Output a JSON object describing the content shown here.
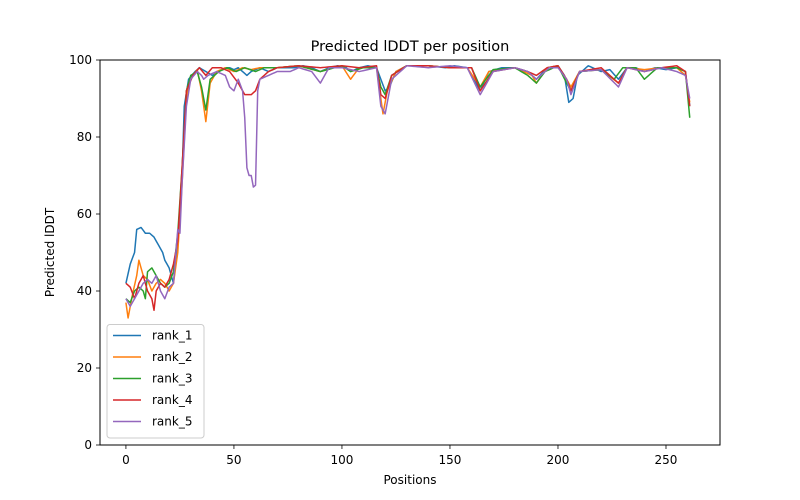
{
  "chart_data": {
    "type": "line",
    "title": "Predicted lDDT per position",
    "xlabel": "Positions",
    "ylabel": "Predicted lDDT",
    "xlim": [
      -12,
      275
    ],
    "ylim": [
      0,
      100
    ],
    "xticks": [
      0,
      50,
      100,
      150,
      200,
      250
    ],
    "yticks": [
      0,
      20,
      40,
      60,
      80,
      100
    ],
    "grid": false,
    "legend_position": "lower-left",
    "n_positions": 262,
    "series": [
      {
        "name": "rank_1",
        "color": "#1f77b4",
        "points": [
          [
            0,
            42
          ],
          [
            2,
            47
          ],
          [
            4,
            50
          ],
          [
            5,
            56
          ],
          [
            7,
            56.5
          ],
          [
            9,
            55
          ],
          [
            11,
            55
          ],
          [
            13,
            54
          ],
          [
            15,
            52
          ],
          [
            17,
            50
          ],
          [
            18,
            48
          ],
          [
            20,
            46
          ],
          [
            21,
            44
          ],
          [
            22,
            42
          ],
          [
            24,
            52
          ],
          [
            26,
            70
          ],
          [
            27,
            88
          ],
          [
            29,
            95
          ],
          [
            32,
            97
          ],
          [
            34,
            98
          ],
          [
            37,
            97
          ],
          [
            40,
            96
          ],
          [
            43,
            97
          ],
          [
            46,
            98
          ],
          [
            48,
            98
          ],
          [
            50,
            97.5
          ],
          [
            52,
            98
          ],
          [
            54,
            97
          ],
          [
            56,
            96
          ],
          [
            58,
            97
          ],
          [
            60,
            97.5
          ],
          [
            62,
            98
          ],
          [
            66,
            97
          ],
          [
            70,
            98
          ],
          [
            74,
            98
          ],
          [
            78,
            98
          ],
          [
            82,
            98.5
          ],
          [
            86,
            98
          ],
          [
            90,
            97
          ],
          [
            94,
            98
          ],
          [
            98,
            98.5
          ],
          [
            102,
            98
          ],
          [
            104,
            97
          ],
          [
            108,
            98
          ],
          [
            112,
            98.5
          ],
          [
            116,
            98
          ],
          [
            118,
            95
          ],
          [
            120,
            92
          ],
          [
            122,
            93
          ],
          [
            125,
            97
          ],
          [
            130,
            98.5
          ],
          [
            140,
            98.5
          ],
          [
            148,
            98
          ],
          [
            152,
            98.5
          ],
          [
            158,
            98
          ],
          [
            164,
            92
          ],
          [
            168,
            97
          ],
          [
            174,
            98
          ],
          [
            180,
            98
          ],
          [
            186,
            97
          ],
          [
            190,
            95
          ],
          [
            195,
            98
          ],
          [
            200,
            98.5
          ],
          [
            203,
            96
          ],
          [
            205,
            89
          ],
          [
            207,
            90
          ],
          [
            209,
            96
          ],
          [
            214,
            98.5
          ],
          [
            220,
            97
          ],
          [
            224,
            97.5
          ],
          [
            228,
            95
          ],
          [
            232,
            98
          ],
          [
            236,
            98
          ],
          [
            240,
            97
          ],
          [
            245,
            98
          ],
          [
            250,
            97.5
          ],
          [
            255,
            98
          ],
          [
            259,
            97
          ],
          [
            261,
            88
          ]
        ]
      },
      {
        "name": "rank_2",
        "color": "#ff7f0e",
        "points": [
          [
            0,
            37
          ],
          [
            1,
            33
          ],
          [
            3,
            39
          ],
          [
            5,
            44
          ],
          [
            6,
            48
          ],
          [
            8,
            44
          ],
          [
            10,
            43
          ],
          [
            12,
            40
          ],
          [
            14,
            42
          ],
          [
            16,
            43
          ],
          [
            18,
            42
          ],
          [
            20,
            40
          ],
          [
            22,
            42
          ],
          [
            24,
            50
          ],
          [
            26,
            68
          ],
          [
            28,
            90
          ],
          [
            30,
            95
          ],
          [
            33,
            97.5
          ],
          [
            35,
            92
          ],
          [
            37,
            84
          ],
          [
            39,
            94
          ],
          [
            42,
            97
          ],
          [
            46,
            98
          ],
          [
            50,
            97
          ],
          [
            54,
            98
          ],
          [
            58,
            97.5
          ],
          [
            62,
            98
          ],
          [
            70,
            98
          ],
          [
            80,
            98.5
          ],
          [
            90,
            97
          ],
          [
            96,
            98
          ],
          [
            100,
            98.5
          ],
          [
            104,
            95
          ],
          [
            108,
            98
          ],
          [
            116,
            98
          ],
          [
            118,
            90
          ],
          [
            119,
            86
          ],
          [
            121,
            92
          ],
          [
            125,
            97
          ],
          [
            130,
            98.5
          ],
          [
            140,
            98.5
          ],
          [
            150,
            98
          ],
          [
            158,
            98
          ],
          [
            164,
            93
          ],
          [
            168,
            97
          ],
          [
            180,
            98
          ],
          [
            188,
            96
          ],
          [
            190,
            94
          ],
          [
            195,
            98
          ],
          [
            200,
            98.5
          ],
          [
            204,
            95
          ],
          [
            206,
            93
          ],
          [
            210,
            97
          ],
          [
            220,
            97.5
          ],
          [
            228,
            94
          ],
          [
            232,
            98
          ],
          [
            240,
            97.5
          ],
          [
            248,
            98
          ],
          [
            255,
            98
          ],
          [
            259,
            96
          ],
          [
            261,
            89
          ]
        ]
      },
      {
        "name": "rank_3",
        "color": "#2ca02c",
        "points": [
          [
            0,
            38
          ],
          [
            2,
            37
          ],
          [
            4,
            40
          ],
          [
            6,
            41
          ],
          [
            8,
            40
          ],
          [
            9,
            38
          ],
          [
            10,
            45
          ],
          [
            12,
            46
          ],
          [
            14,
            44
          ],
          [
            16,
            42
          ],
          [
            18,
            41
          ],
          [
            20,
            42
          ],
          [
            22,
            45
          ],
          [
            24,
            55
          ],
          [
            26,
            72
          ],
          [
            28,
            92
          ],
          [
            30,
            96
          ],
          [
            33,
            97
          ],
          [
            35,
            93
          ],
          [
            37,
            87
          ],
          [
            39,
            95
          ],
          [
            43,
            97
          ],
          [
            47,
            98
          ],
          [
            51,
            97
          ],
          [
            55,
            98
          ],
          [
            60,
            97
          ],
          [
            64,
            98
          ],
          [
            70,
            98
          ],
          [
            80,
            98.5
          ],
          [
            90,
            97
          ],
          [
            100,
            98.5
          ],
          [
            104,
            97
          ],
          [
            110,
            98
          ],
          [
            116,
            98
          ],
          [
            118,
            93
          ],
          [
            120,
            91
          ],
          [
            123,
            96
          ],
          [
            130,
            98.5
          ],
          [
            140,
            98.5
          ],
          [
            150,
            98
          ],
          [
            160,
            98
          ],
          [
            164,
            93
          ],
          [
            170,
            97.5
          ],
          [
            180,
            98
          ],
          [
            186,
            96
          ],
          [
            190,
            94
          ],
          [
            194,
            97
          ],
          [
            200,
            98.5
          ],
          [
            204,
            94
          ],
          [
            206,
            92
          ],
          [
            210,
            97
          ],
          [
            220,
            97.5
          ],
          [
            226,
            95
          ],
          [
            230,
            98
          ],
          [
            236,
            98
          ],
          [
            240,
            95
          ],
          [
            246,
            98
          ],
          [
            255,
            98
          ],
          [
            259,
            97
          ],
          [
            261,
            85
          ]
        ]
      },
      {
        "name": "rank_4",
        "color": "#d62728",
        "points": [
          [
            0,
            42
          ],
          [
            2,
            41
          ],
          [
            4,
            38
          ],
          [
            6,
            42
          ],
          [
            8,
            44
          ],
          [
            10,
            40
          ],
          [
            12,
            38
          ],
          [
            13,
            35
          ],
          [
            14,
            40
          ],
          [
            16,
            42
          ],
          [
            18,
            41
          ],
          [
            20,
            43
          ],
          [
            22,
            47
          ],
          [
            24,
            53
          ],
          [
            26,
            72
          ],
          [
            28,
            92
          ],
          [
            31,
            96
          ],
          [
            34,
            98
          ],
          [
            37,
            96
          ],
          [
            40,
            98
          ],
          [
            44,
            98
          ],
          [
            48,
            97
          ],
          [
            52,
            94
          ],
          [
            55,
            91
          ],
          [
            58,
            91
          ],
          [
            60,
            92
          ],
          [
            62,
            95
          ],
          [
            66,
            97
          ],
          [
            70,
            98
          ],
          [
            80,
            98.5
          ],
          [
            90,
            98
          ],
          [
            100,
            98.5
          ],
          [
            108,
            98
          ],
          [
            116,
            98.5
          ],
          [
            118,
            91
          ],
          [
            120,
            90
          ],
          [
            123,
            96
          ],
          [
            130,
            98.5
          ],
          [
            140,
            98.5
          ],
          [
            150,
            98
          ],
          [
            160,
            98
          ],
          [
            164,
            92
          ],
          [
            170,
            97
          ],
          [
            180,
            98
          ],
          [
            186,
            97
          ],
          [
            190,
            96
          ],
          [
            195,
            98
          ],
          [
            200,
            98.5
          ],
          [
            204,
            95
          ],
          [
            206,
            92
          ],
          [
            210,
            97
          ],
          [
            220,
            98
          ],
          [
            228,
            94
          ],
          [
            232,
            98
          ],
          [
            240,
            97
          ],
          [
            248,
            98
          ],
          [
            255,
            98.5
          ],
          [
            259,
            97
          ],
          [
            261,
            88
          ]
        ]
      },
      {
        "name": "rank_5",
        "color": "#9467bd",
        "points": [
          [
            0,
            38
          ],
          [
            2,
            36
          ],
          [
            4,
            38
          ],
          [
            6,
            40
          ],
          [
            8,
            42
          ],
          [
            10,
            43
          ],
          [
            12,
            42
          ],
          [
            14,
            44
          ],
          [
            16,
            40
          ],
          [
            18,
            38
          ],
          [
            20,
            41
          ],
          [
            22,
            42
          ],
          [
            24,
            56
          ],
          [
            25,
            55
          ],
          [
            26,
            68
          ],
          [
            28,
            88
          ],
          [
            30,
            95
          ],
          [
            33,
            97
          ],
          [
            35,
            96
          ],
          [
            36,
            95
          ],
          [
            38,
            96
          ],
          [
            42,
            97
          ],
          [
            46,
            96
          ],
          [
            48,
            93
          ],
          [
            50,
            92
          ],
          [
            52,
            95
          ],
          [
            54,
            92
          ],
          [
            55,
            85
          ],
          [
            56,
            72
          ],
          [
            57,
            70
          ],
          [
            58,
            70
          ],
          [
            59,
            67
          ],
          [
            60,
            67.5
          ],
          [
            61,
            92
          ],
          [
            62,
            95
          ],
          [
            66,
            96
          ],
          [
            70,
            97
          ],
          [
            76,
            97
          ],
          [
            80,
            98
          ],
          [
            86,
            97
          ],
          [
            90,
            94
          ],
          [
            94,
            98
          ],
          [
            100,
            98
          ],
          [
            108,
            97
          ],
          [
            116,
            98
          ],
          [
            118,
            88
          ],
          [
            120,
            86
          ],
          [
            123,
            95
          ],
          [
            130,
            98.5
          ],
          [
            140,
            98
          ],
          [
            150,
            98.5
          ],
          [
            158,
            98
          ],
          [
            164,
            91
          ],
          [
            170,
            97
          ],
          [
            180,
            98
          ],
          [
            186,
            97
          ],
          [
            190,
            95
          ],
          [
            196,
            98
          ],
          [
            200,
            98
          ],
          [
            204,
            95
          ],
          [
            206,
            91
          ],
          [
            210,
            97
          ],
          [
            220,
            97.5
          ],
          [
            228,
            93
          ],
          [
            232,
            98
          ],
          [
            240,
            97
          ],
          [
            248,
            98
          ],
          [
            255,
            97
          ],
          [
            259,
            96
          ],
          [
            261,
            90
          ]
        ]
      }
    ]
  }
}
